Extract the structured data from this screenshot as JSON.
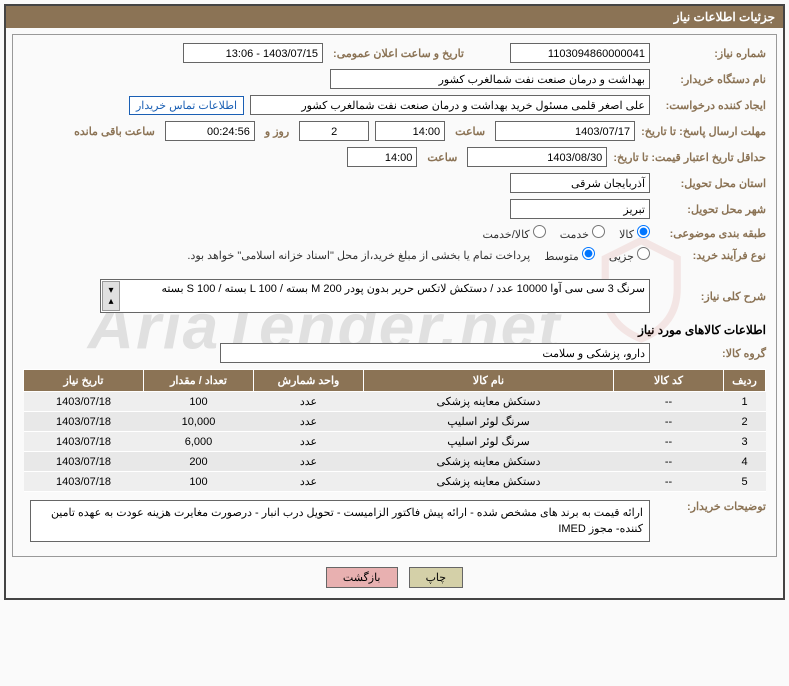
{
  "title": "جزئیات اطلاعات نیاز",
  "fields": {
    "need_no_label": "شماره نیاز:",
    "need_no": "1103094860000041",
    "announce_label": "تاریخ و ساعت اعلان عمومی:",
    "announce": "1403/07/15 - 13:06",
    "buyer_org_label": "نام دستگاه خریدار:",
    "buyer_org": "بهداشت و درمان صنعت نفت شمالغرب کشور",
    "requester_label": "ایجاد کننده درخواست:",
    "requester": "علی اصغر قلمی مسئول خرید بهداشت و درمان صنعت نفت شمالغرب کشور",
    "contact_btn": "اطلاعات تماس خریدار",
    "deadline_label": "مهلت ارسال پاسخ: تا تاریخ:",
    "deadline_date": "1403/07/17",
    "time_label": "ساعت",
    "deadline_time": "14:00",
    "days_left": "2",
    "days_label": "روز و",
    "time_left": "00:24:56",
    "remaining_label": "ساعت باقی مانده",
    "validity_label": "حداقل تاریخ اعتبار قیمت: تا تاریخ:",
    "validity_date": "1403/08/30",
    "validity_time": "14:00",
    "province_label": "استان محل تحویل:",
    "province": "آذربایجان شرقی",
    "city_label": "شهر محل تحویل:",
    "city": "تبریز",
    "category_label": "طبقه بندی موضوعی:",
    "cat_goods": "کالا",
    "cat_service": "خدمت",
    "cat_both": "کالا/خدمت",
    "purchase_type_label": "نوع فرآیند خرید:",
    "pt_small": "جزیی",
    "pt_medium": "متوسط",
    "purchase_note": "پرداخت تمام یا بخشی از مبلغ خرید،از محل \"اسناد خزانه اسلامی\" خواهد بود.",
    "overall_desc_label": "شرح کلی نیاز:",
    "overall_desc": "سرنگ 3 سی سی آوا 10000 عدد / دستکش لاتکس حریر بدون پودر M 200 بسته / L 100 بسته / S 100 بسته",
    "items_section": "اطلاعات کالاهای مورد نیاز",
    "goods_group_label": "گروه کالا:",
    "goods_group": "دارو، پزشکی و سلامت",
    "buyer_notes_label": "توضیحات خریدار:",
    "buyer_notes": "ارائه قیمت به برند های مشخص شده - ارائه پیش فاکتور الزامیست - تحویل درب انبار - درصورت مغایرت هزینه عودت به عهده تامین کننده- مجوز IMED"
  },
  "table": {
    "headers": [
      "ردیف",
      "کد کالا",
      "نام کالا",
      "واحد شمارش",
      "تعداد / مقدار",
      "تاریخ نیاز"
    ],
    "rows": [
      [
        "1",
        "--",
        "دستکش معاینه پزشکی",
        "عدد",
        "100",
        "1403/07/18"
      ],
      [
        "2",
        "--",
        "سرنگ لوئر اسلیپ",
        "عدد",
        "10,000",
        "1403/07/18"
      ],
      [
        "3",
        "--",
        "سرنگ لوئر اسلیپ",
        "عدد",
        "6,000",
        "1403/07/18"
      ],
      [
        "4",
        "--",
        "دستکش معاینه پزشکی",
        "عدد",
        "200",
        "1403/07/18"
      ],
      [
        "5",
        "--",
        "دستکش معاینه پزشکی",
        "عدد",
        "100",
        "1403/07/18"
      ]
    ]
  },
  "buttons": {
    "print": "چاپ",
    "back": "بازگشت"
  },
  "watermark": "AriaTender.net",
  "colors": {
    "accent": "#8b7355",
    "link": "#1a5fb4"
  }
}
